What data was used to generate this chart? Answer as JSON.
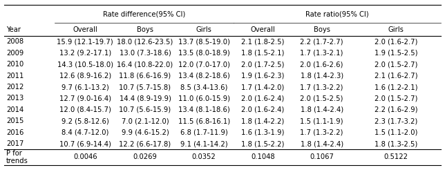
{
  "headers_top": [
    "Rate difference(95% CI)",
    "Rate ratio(95% CI)"
  ],
  "headers_sub": [
    "Year",
    "Overall",
    "Boys",
    "Girls",
    "Overall",
    "Boys",
    "Girls"
  ],
  "rows": [
    [
      "2008",
      "15.9 (12.1-19.7)",
      "18.0 (12.6-23.5)",
      "13.7 (8.5-19.0)",
      "2.1 (1.8-2.5)",
      "2.2 (1.7-2.7)",
      "2.0 (1.6-2.7)"
    ],
    [
      "2009",
      "13.2 (9.2-17.1)",
      "13.0 (7.3-18.6)",
      "13.5 (8.0-18.9)",
      "1.8 (1.5-2.1)",
      "1.7 (1.3-2.1)",
      "1.9 (1.5-2.5)"
    ],
    [
      "2010",
      "14.3 (10.5-18.0)",
      "16.4 (10.8-22.0)",
      "12.0 (7.0-17.0)",
      "2.0 (1.7-2.5)",
      "2.0 (1.6-2.6)",
      "2.0 (1.5-2.7)"
    ],
    [
      "2011",
      "12.6 (8.9-16.2)",
      "11.8 (6.6-16.9)",
      "13.4 (8.2-18.6)",
      "1.9 (1.6-2.3)",
      "1.8 (1.4-2.3)",
      "2.1 (1.6-2.7)"
    ],
    [
      "2012",
      "9.7 (6.1-13.2)",
      "10.7 (5.7-15.8)",
      "8.5 (3.4-13.6)",
      "1.7 (1.4-2.0)",
      "1.7 (1.3-2.2)",
      "1.6 (1.2-2.1)"
    ],
    [
      "2013",
      "12.7 (9.0-16.4)",
      "14.4 (8.9-19.9)",
      "11.0 (6.0-15.9)",
      "2.0 (1.6-2.4)",
      "2.0 (1.5-2.5)",
      "2.0 (1.5-2.7)"
    ],
    [
      "2014",
      "12.0 (8.4-15.7)",
      "10.7 (5.6-15.9)",
      "13.4 (8.1-18.6)",
      "2.0 (1.6-2.4)",
      "1.8 (1.4-2.4)",
      "2.2 (1.6-2.9)"
    ],
    [
      "2015",
      "9.2 (5.8-12.6)",
      "7.0 (2.1-12.0)",
      "11.5 (6.8-16.1)",
      "1.8 (1.4-2.2)",
      "1.5 (1.1-1.9)",
      "2.3 (1.7-3.2)"
    ],
    [
      "2016",
      "8.4 (4.7-12.0)",
      "9.9 (4.6-15.2)",
      "6.8 (1.7-11.9)",
      "1.6 (1.3-1.9)",
      "1.7 (1.3-2.2)",
      "1.5 (1.1-2.0)"
    ],
    [
      "2017",
      "10.7 (6.9-14.4)",
      "12.2 (6.6-17.8)",
      "9.1 (4.1-14.2)",
      "1.8 (1.5-2.2)",
      "1.8 (1.4-2.4)",
      "1.8 (1.3-2.5)"
    ]
  ],
  "footer_label": "P for\ntrends",
  "footer_values": [
    "0.0046",
    "0.0269",
    "0.0352",
    "0.1048",
    "0.1067",
    "0.5122"
  ],
  "bg_color": "#ffffff",
  "text_color": "#000000",
  "fontsize": 7.2
}
